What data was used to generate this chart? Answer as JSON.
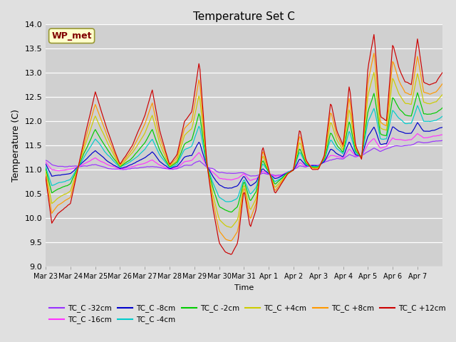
{
  "title": "Temperature Set C",
  "ylabel": "Temperature (C)",
  "xlabel": "Time",
  "ylim": [
    9.0,
    14.0
  ],
  "yticks": [
    9.0,
    9.5,
    10.0,
    10.5,
    11.0,
    11.5,
    12.0,
    12.5,
    13.0,
    13.5,
    14.0
  ],
  "fig_bg": "#e0e0e0",
  "plot_bg": "#d0d0d0",
  "series": [
    {
      "label": "TC_C -32cm",
      "color": "#9933ff",
      "df": 0.04
    },
    {
      "label": "TC_C -16cm",
      "color": "#ff33ff",
      "df": 0.12
    },
    {
      "label": "TC_C -8cm",
      "color": "#0000cc",
      "df": 0.22
    },
    {
      "label": "TC_C -4cm",
      "color": "#00cccc",
      "df": 0.38
    },
    {
      "label": "TC_C -2cm",
      "color": "#00cc00",
      "df": 0.5
    },
    {
      "label": "TC_C +4cm",
      "color": "#cccc00",
      "df": 0.68
    },
    {
      "label": "TC_C +8cm",
      "color": "#ff9900",
      "df": 0.84
    },
    {
      "label": "TC_C +12cm",
      "color": "#cc0000",
      "df": 1.0
    }
  ],
  "xtick_labels": [
    "Mar 23",
    "Mar 24",
    "Mar 25",
    "Mar 26",
    "Mar 27",
    "Mar 28",
    "Mar 29",
    "Mar 30",
    "Mar 31",
    "Apr 1",
    "Apr 2",
    "Apr 3",
    "Apr 4",
    "Apr 5",
    "Apr 6",
    "Apr 7"
  ],
  "wp_met_box_color": "#ffffcc",
  "wp_met_text_color": "#800000",
  "wp_met_edge_color": "#999933",
  "t_key": [
    0,
    0.25,
    0.5,
    1.0,
    1.5,
    2.0,
    2.5,
    3.0,
    3.5,
    4.0,
    4.3,
    4.6,
    5.0,
    5.3,
    5.6,
    5.9,
    6.2,
    6.5,
    6.75,
    7.0,
    7.25,
    7.5,
    7.75,
    8.0,
    8.25,
    8.5,
    8.75,
    9.0,
    9.25,
    9.5,
    9.75,
    10.0,
    10.25,
    10.5,
    10.75,
    11.0,
    11.25,
    11.5,
    11.75,
    12.0,
    12.25,
    12.5,
    12.75,
    13.0,
    13.25,
    13.5,
    13.75,
    14.0,
    14.25,
    14.5,
    14.75,
    15.0,
    15.25,
    15.5,
    15.75,
    16.0
  ],
  "v_surface": [
    10.85,
    9.9,
    10.1,
    10.3,
    11.5,
    12.6,
    11.8,
    11.1,
    11.5,
    12.1,
    12.65,
    11.8,
    11.1,
    11.3,
    12.0,
    12.2,
    13.25,
    11.15,
    10.2,
    9.5,
    9.3,
    9.25,
    9.5,
    10.6,
    9.8,
    10.2,
    11.5,
    11.0,
    10.5,
    10.7,
    10.9,
    11.0,
    11.85,
    11.2,
    11.0,
    11.0,
    11.3,
    12.4,
    11.8,
    11.5,
    12.75,
    11.5,
    11.2,
    13.1,
    13.8,
    12.1,
    12.0,
    13.6,
    13.1,
    12.8,
    12.75,
    13.7,
    12.8,
    12.75,
    12.8,
    13.0
  ],
  "v_deep": [
    11.2,
    11.15,
    11.1,
    11.1,
    11.05,
    11.05,
    11.0,
    11.0,
    11.0,
    11.0,
    11.0,
    11.0,
    11.0,
    11.0,
    11.05,
    11.05,
    11.1,
    11.05,
    11.05,
    11.0,
    11.0,
    11.0,
    11.0,
    10.95,
    10.9,
    10.9,
    10.9,
    10.9,
    10.9,
    10.9,
    10.95,
    11.0,
    11.05,
    11.05,
    11.1,
    11.1,
    11.15,
    11.15,
    11.2,
    11.2,
    11.25,
    11.25,
    11.3,
    11.3,
    11.35,
    11.35,
    11.4,
    11.4,
    11.42,
    11.44,
    11.46,
    11.48,
    11.5,
    11.52,
    11.54,
    11.55
  ]
}
